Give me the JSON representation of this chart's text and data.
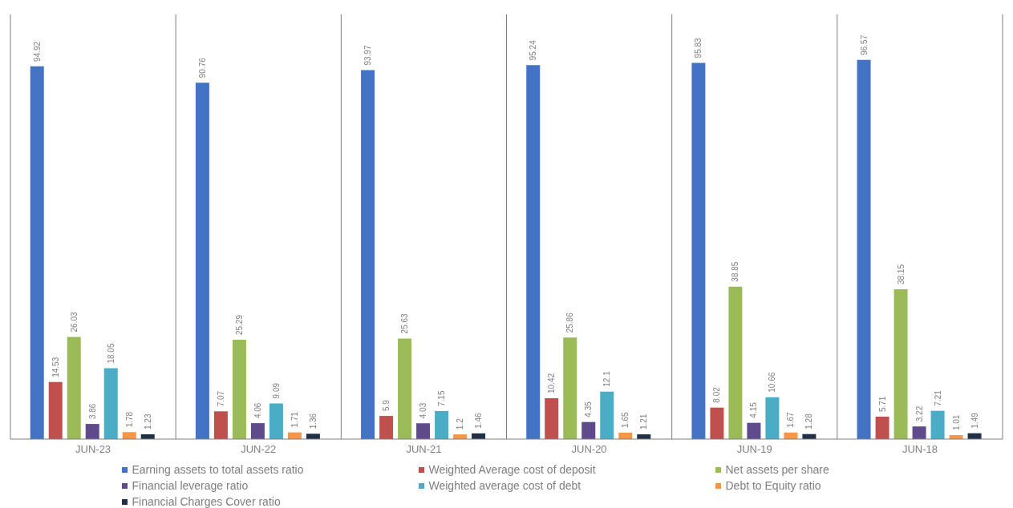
{
  "chart_data": {
    "type": "bar",
    "categories": [
      "JUN-23",
      "JUN-22",
      "JUN-21",
      "JUN-20",
      "JUN-19",
      "JUN-18"
    ],
    "series": [
      {
        "name": "Earning assets to total assets ratio",
        "color": "#4472c4",
        "values": [
          94.92,
          90.76,
          93.97,
          95.24,
          95.83,
          96.57
        ]
      },
      {
        "name": "Weighted Average cost of deposit",
        "color": "#c0504d",
        "values": [
          14.53,
          7.07,
          5.9,
          10.42,
          8.02,
          5.71
        ]
      },
      {
        "name": "Net assets per share",
        "color": "#9bbb59",
        "values": [
          26.03,
          25.29,
          25.63,
          25.86,
          38.85,
          38.15
        ]
      },
      {
        "name": "Financial leverage ratio",
        "color": "#5f4b8b",
        "values": [
          3.86,
          4.06,
          4.03,
          4.35,
          4.15,
          3.22
        ]
      },
      {
        "name": "Weighted average cost of debt",
        "color": "#4bacc6",
        "values": [
          18.05,
          9.09,
          7.15,
          12.1,
          10.66,
          7.21
        ]
      },
      {
        "name": "Debt to Equity ratio",
        "color": "#f79646",
        "values": [
          1.78,
          1.71,
          1.2,
          1.65,
          1.67,
          1.01
        ]
      },
      {
        "name": "Financial Charges Cover ratio",
        "color": "#1f3047",
        "values": [
          1.23,
          1.36,
          1.46,
          1.21,
          1.28,
          1.49
        ]
      }
    ],
    "data_labels": true,
    "grid": "x",
    "legend": "bottom"
  }
}
